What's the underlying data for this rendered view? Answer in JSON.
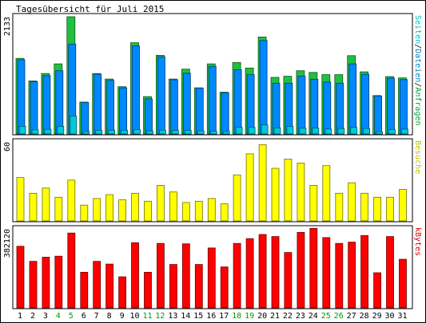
{
  "chart_data": {
    "type": "bar",
    "title": "Tagesübersicht für Juli 2015",
    "categories": [
      "1",
      "2",
      "3",
      "4",
      "5",
      "6",
      "7",
      "8",
      "9",
      "10",
      "11",
      "12",
      "13",
      "14",
      "15",
      "16",
      "17",
      "18",
      "19",
      "20",
      "21",
      "22",
      "23",
      "24",
      "25",
      "26",
      "27",
      "28",
      "29",
      "30",
      "31"
    ],
    "weekend_days": [
      "4",
      "5",
      "11",
      "12",
      "18",
      "19",
      "25",
      "26"
    ],
    "panels": [
      {
        "id": "requests",
        "ymax_label": "2133",
        "ymax": 2133,
        "side_labels": [
          {
            "text": "Seiten",
            "color": "#00c0c0"
          },
          {
            "text": "/",
            "color": "#000000"
          },
          {
            "text": "Dateien",
            "color": "#0080c0"
          },
          {
            "text": "/",
            "color": "#000000"
          },
          {
            "text": "Anfragen",
            "color": "#00a030"
          }
        ],
        "series": [
          {
            "name": "Anfragen",
            "color": "#20c040",
            "values": [
              1375,
              965,
              1100,
              1275,
              2133,
              580,
              1100,
              1000,
              860,
              1660,
              680,
              1430,
              1000,
              1180,
              840,
              1275,
              760,
              1300,
              1200,
              1765,
              1030,
              1050,
              1150,
              1120,
              1080,
              1080,
              1425,
              1130,
              700,
              1045,
              1020
            ]
          },
          {
            "name": "Dateien",
            "color": "#0088ff",
            "values": [
              1350,
              950,
              1060,
              1150,
              1635,
              575,
              1090,
              975,
              840,
              1600,
              640,
              1405,
              985,
              1105,
              835,
              1230,
              750,
              1170,
              1080,
              1700,
              925,
              925,
              1050,
              995,
              945,
              925,
              1275,
              1085,
              690,
              1015,
              990
            ]
          },
          {
            "name": "Seiten",
            "color": "#00c8d8",
            "values": [
              140,
              75,
              85,
              140,
              325,
              45,
              65,
              70,
              70,
              80,
              55,
              70,
              65,
              65,
              55,
              50,
              45,
              120,
              120,
              165,
              110,
              140,
              105,
              110,
              90,
              100,
              120,
              100,
              40,
              80,
              90
            ]
          }
        ]
      },
      {
        "id": "visits",
        "ymax_label": "60",
        "ymax": 60,
        "side_labels": [
          {
            "text": "Besuche",
            "color": "#c0c000"
          }
        ],
        "series": [
          {
            "name": "Besuche",
            "color": "#ffff00",
            "values": [
              33,
              21,
              25,
              18,
              31,
              12,
              17,
              20,
              16,
              21,
              15,
              27,
              22,
              14,
              15,
              17,
              13,
              35,
              51,
              58,
              40,
              47,
              44,
              27,
              42,
              21,
              29,
              21,
              18,
              18,
              24
            ]
          }
        ]
      },
      {
        "id": "bytes",
        "ymax_label": "382120",
        "ymax": 382120,
        "side_labels": [
          {
            "text": "kBytes",
            "color": "#e00000"
          }
        ],
        "series": [
          {
            "name": "kBytes",
            "color": "#ff0000",
            "values": [
              298000,
              225000,
              245000,
              250000,
              362000,
              172000,
              225000,
              212000,
              150000,
              315000,
              172000,
              312000,
              210000,
              310000,
              210000,
              290000,
              198000,
              312000,
              335000,
              355000,
              345000,
              268000,
              365000,
              385000,
              340000,
              312000,
              318000,
              350000,
              170000,
              345000,
              235000
            ]
          }
        ]
      }
    ]
  }
}
